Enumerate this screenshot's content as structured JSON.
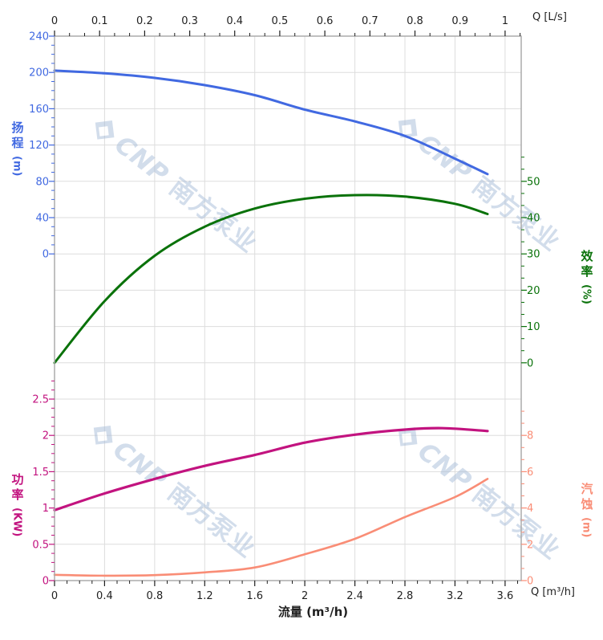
{
  "watermark": {
    "text_latin": "CNP",
    "text_cn": "南方泵业",
    "color": "#A7BCD9",
    "logo": "cnp-diamond-logo"
  },
  "colors": {
    "grid": "#DDDDDD",
    "spine": "#ABABAB",
    "axis_text": "#1F1F1F",
    "head": "#4169E1",
    "efficiency": "#0A720A",
    "power": "#C2137F",
    "npsh": "#F98D76"
  },
  "axes": {
    "top_x": {
      "unit_label": "Q [L/s]",
      "tick_labels": [
        "0",
        "0.1",
        "0.2",
        "0.3",
        "0.4",
        "0.5",
        "0.6",
        "0.7",
        "0.8",
        "0.9",
        "1"
      ]
    },
    "bottom_x": {
      "unit_label": "Q [m³/h]",
      "axis_title": "流量 (m³/h)",
      "tick_labels": [
        "0",
        "0.4",
        "0.8",
        "1.2",
        "1.6",
        "2",
        "2.4",
        "2.8",
        "3.2",
        "3.6"
      ]
    },
    "head_y": {
      "title": "扬程",
      "unit": "(m)",
      "tick_labels": [
        "240",
        "200",
        "160",
        "120",
        "80",
        "40",
        "0"
      ]
    },
    "eff_y": {
      "title": "效率",
      "unit": "(%)",
      "tick_labels": [
        "50",
        "40",
        "30",
        "20",
        "10",
        "0"
      ]
    },
    "power_y": {
      "title": "功率",
      "unit": "(KW)",
      "tick_labels": [
        "2.5",
        "2",
        "1.5",
        "1",
        "0.5",
        "0"
      ]
    },
    "npsh_y": {
      "title": "汽蚀",
      "unit": "(m)",
      "tick_labels": [
        "8",
        "6",
        "4",
        "2",
        "0"
      ]
    }
  },
  "chart_data": [
    {
      "type": "line",
      "name": "head-efficiency-chart",
      "x_unit_bottom": "m³/h",
      "x_unit_top": "L/s",
      "x_range_bottom": [
        0,
        3.6
      ],
      "x_range_top": [
        0,
        1
      ],
      "grid": true,
      "series": [
        {
          "name": "扬程 (Head)",
          "scale": "head",
          "ylabel": "扬程 (m)",
          "ylim": [
            0,
            240
          ],
          "color": "#4169E1",
          "points": [
            [
              0,
              202
            ],
            [
              0.4,
              199
            ],
            [
              0.8,
              194
            ],
            [
              1.2,
              186
            ],
            [
              1.6,
              175
            ],
            [
              2.0,
              159
            ],
            [
              2.4,
              146
            ],
            [
              2.8,
              130
            ],
            [
              3.2,
              105
            ],
            [
              3.46,
              88
            ]
          ]
        },
        {
          "name": "效率 (Efficiency)",
          "scale": "eff",
          "ylabel": "效率 (%)",
          "ylim": [
            0,
            50
          ],
          "color": "#0A720A",
          "points": [
            [
              0,
              0
            ],
            [
              0.4,
              17
            ],
            [
              0.8,
              29.5
            ],
            [
              1.2,
              37.5
            ],
            [
              1.6,
              42.5
            ],
            [
              2.0,
              45.2
            ],
            [
              2.4,
              46.2
            ],
            [
              2.8,
              45.8
            ],
            [
              3.2,
              43.8
            ],
            [
              3.46,
              41
            ]
          ]
        }
      ]
    },
    {
      "type": "line",
      "name": "power-npsh-chart",
      "x_unit_bottom": "m³/h",
      "x_range_bottom": [
        0,
        3.6
      ],
      "grid": true,
      "series": [
        {
          "name": "功率 (Power)",
          "scale": "power",
          "ylabel": "功率 (KW)",
          "ylim": [
            0,
            2.5
          ],
          "color": "#C2137F",
          "points": [
            [
              0,
              0.97
            ],
            [
              0.4,
              1.2
            ],
            [
              0.8,
              1.4
            ],
            [
              1.2,
              1.58
            ],
            [
              1.6,
              1.73
            ],
            [
              2.0,
              1.9
            ],
            [
              2.4,
              2.01
            ],
            [
              2.8,
              2.08
            ],
            [
              3.1,
              2.1
            ],
            [
              3.46,
              2.06
            ]
          ]
        },
        {
          "name": "汽蚀 (NPSH)",
          "scale": "npsh",
          "ylabel": "汽蚀 (m)",
          "ylim": [
            0,
            8
          ],
          "color": "#F98D76",
          "points": [
            [
              0,
              0.32
            ],
            [
              0.4,
              0.27
            ],
            [
              0.8,
              0.3
            ],
            [
              1.2,
              0.45
            ],
            [
              1.6,
              0.72
            ],
            [
              2.0,
              1.45
            ],
            [
              2.4,
              2.3
            ],
            [
              2.8,
              3.5
            ],
            [
              3.2,
              4.6
            ],
            [
              3.46,
              5.6
            ]
          ]
        }
      ]
    }
  ]
}
